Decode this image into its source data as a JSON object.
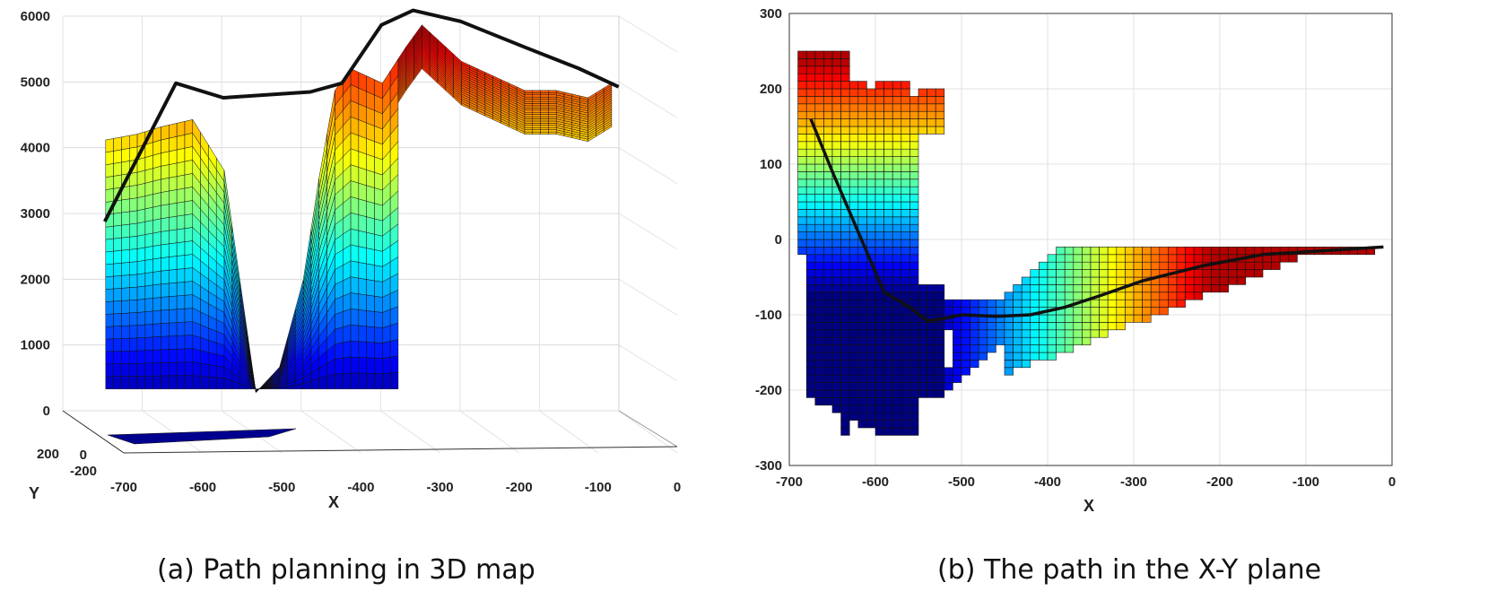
{
  "chart_data": [
    {
      "panel_id": "a",
      "type": "surface",
      "caption": "(a) Path planning in 3D map",
      "xlabel": "X",
      "ylabel": "Y",
      "zlabel": "",
      "xlim": [
        -700,
        0
      ],
      "ylim": [
        -200,
        300
      ],
      "zlim": [
        0,
        6000
      ],
      "x_ticks": [
        "-700",
        "-600",
        "-500",
        "-400",
        "-300",
        "-200",
        "-100",
        "0"
      ],
      "y_ticks": [
        "-200",
        "0",
        "200"
      ],
      "z_ticks": [
        "0",
        "1000",
        "2000",
        "3000",
        "4000",
        "5000",
        "6000"
      ],
      "grid": true,
      "colormap": [
        "#00008f",
        "#0040ff",
        "#00c0ff",
        "#40ffc0",
        "#c0ff40",
        "#ffc000",
        "#ff4000",
        "#c00000"
      ],
      "path_color": "#111111",
      "path": {
        "x": [
          -690,
          -600,
          -540,
          -430,
          -390,
          -340,
          -300,
          -240,
          -160,
          -90,
          -40
        ],
        "z": [
          2600,
          4500,
          4300,
          4380,
          4500,
          5300,
          5500,
          5350,
          5000,
          4700,
          4450
        ]
      },
      "terrain_profile": {
        "x": [
          -700,
          -650,
          -620,
          -580,
          -540,
          -500,
          -470,
          -440,
          -420,
          -400,
          -380,
          -340,
          -310,
          -290,
          -270,
          -240,
          -200,
          -160,
          -120,
          -80,
          -50
        ],
        "z_max": [
          3700,
          3800,
          3900,
          4000,
          3300,
          250,
          600,
          1800,
          3200,
          4400,
          4700,
          4500,
          5000,
          5300,
          5100,
          4800,
          4600,
          4400,
          4400,
          4300,
          4500
        ]
      }
    },
    {
      "panel_id": "b",
      "type": "heatmap",
      "caption": "(b) The path in the X-Y plane",
      "xlabel": "X",
      "ylabel": "Y",
      "xlim": [
        -700,
        0
      ],
      "ylim": [
        -300,
        300
      ],
      "x_ticks": [
        "-700",
        "-600",
        "-500",
        "-400",
        "-300",
        "-200",
        "-100",
        "0"
      ],
      "y_ticks": [
        "300",
        "200",
        "100",
        "0",
        "-100",
        "-200",
        "-300"
      ],
      "grid": true,
      "path_color": "#111111",
      "path": {
        "x": [
          -675,
          -650,
          -620,
          -590,
          -560,
          -540,
          -520,
          -500,
          -460,
          -420,
          -380,
          -340,
          -290,
          -220,
          -150,
          -80,
          -10
        ],
        "y": [
          160,
          90,
          10,
          -70,
          -90,
          -108,
          -105,
          -100,
          -102,
          -100,
          -90,
          -75,
          -55,
          -35,
          -20,
          -15,
          -10
        ]
      },
      "height_range": [
        0,
        5500
      ]
    }
  ]
}
